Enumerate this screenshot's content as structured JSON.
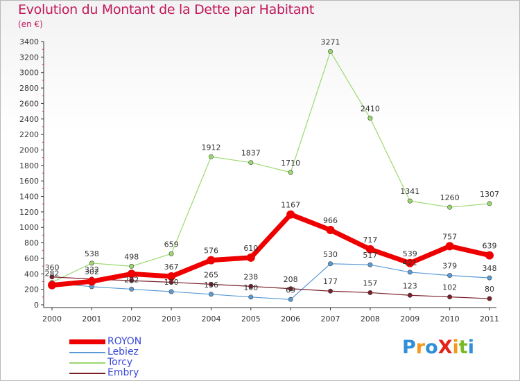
{
  "title": "Evolution du Montant de la Dette par Habitant",
  "unit_label": "(en €)",
  "brand": {
    "text": "ProXiti",
    "letters": [
      {
        "ch": "P",
        "color": "#2f8fd8"
      },
      {
        "ch": "r",
        "color": "#f39a1e"
      },
      {
        "ch": "o",
        "color": "#2f8fd8"
      },
      {
        "ch": "X",
        "color": "#e2231a"
      },
      {
        "ch": "i",
        "color": "#f39a1e"
      },
      {
        "ch": "t",
        "color": "#7ab928"
      },
      {
        "ch": "i",
        "color": "#2f8fd8"
      }
    ]
  },
  "chart_data": {
    "type": "line",
    "x": [
      "2000",
      "2001",
      "2002",
      "2003",
      "2004",
      "2005",
      "2006",
      "2007",
      "2008",
      "2009",
      "2010",
      "2011"
    ],
    "ylim": [
      0,
      3400
    ],
    "yticks": [
      0,
      200,
      400,
      600,
      800,
      1000,
      1200,
      1400,
      1600,
      1800,
      2000,
      2200,
      2400,
      2600,
      2800,
      3000,
      3200,
      3400
    ],
    "grid": false,
    "legend_position": "bottom-left",
    "series": [
      {
        "name": "ROYON",
        "color": "#ee0000",
        "width": 7,
        "values": [
          254,
          302,
          399,
          367,
          576,
          610,
          1167,
          966,
          717,
          539,
          757,
          639
        ]
      },
      {
        "name": "Lebiez",
        "color": "#5b9bd5",
        "width": 1.2,
        "values": [
          282,
          234,
          202,
          170,
          136,
          100,
          69,
          530,
          517,
          421,
          379,
          348
        ]
      },
      {
        "name": "Torcy",
        "color": "#9bd86e",
        "width": 1.2,
        "values": [
          290,
          538,
          498,
          659,
          1912,
          1837,
          1710,
          3271,
          2410,
          1341,
          1260,
          1307
        ]
      },
      {
        "name": "Embry",
        "color": "#7b1f2b",
        "width": 1.2,
        "values": [
          360,
          332,
          312,
          291,
          265,
          238,
          208,
          177,
          157,
          123,
          102,
          80
        ]
      }
    ],
    "labels": [
      {
        "series": 3,
        "values": [
          "360",
          "332",
          "",
          "",
          "265",
          "238",
          "208",
          "177",
          "157",
          "123",
          "102",
          "80"
        ]
      },
      {
        "series": 2,
        "values": [
          "",
          "538",
          "498",
          "659",
          "1912",
          "1837",
          "1710",
          "3271",
          "2410",
          "1341",
          "1260",
          "1307"
        ]
      },
      {
        "series": 0,
        "values": [
          "",
          "302",
          "",
          "367",
          "576",
          "610",
          "1167",
          "966",
          "717",
          "539",
          "757",
          "639"
        ]
      },
      {
        "series": 1,
        "values": [
          "282",
          "",
          "202",
          "170",
          "136",
          "100",
          "69",
          "530",
          "517",
          "421",
          "379",
          "348"
        ]
      }
    ]
  }
}
